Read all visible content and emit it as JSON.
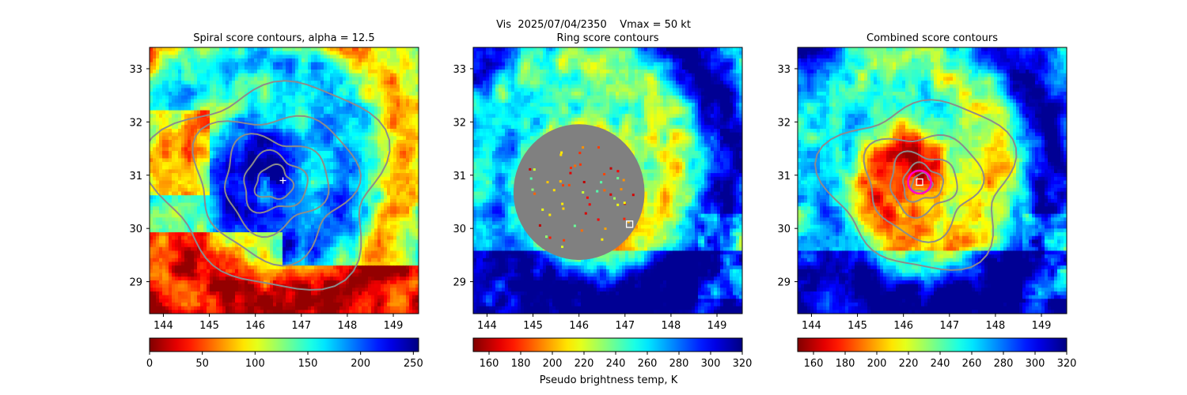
{
  "figure": {
    "suptitle": "Vis  2025/07/04/2350    Vmax = 50 kt",
    "colorbar_label": "Pseudo brightness temp, K"
  },
  "chart_data": [
    {
      "type": "heatmap",
      "title": "Spiral score contours, alpha = 12.5",
      "xlabel": "",
      "ylabel": "",
      "xlim": [
        143.7,
        149.55
      ],
      "ylim": [
        28.4,
        33.4
      ],
      "xticks": [
        144,
        145,
        146,
        147,
        148,
        149
      ],
      "yticks": [
        29,
        30,
        31,
        32,
        33
      ],
      "colormap": "jet_r",
      "colorbar": {
        "min": 0,
        "max": 255,
        "ticks": [
          0,
          50,
          100,
          150,
          200,
          250
        ]
      },
      "storm_center": {
        "lon": 146.3,
        "lat": 30.95
      },
      "contour_color": "#8c8c8c",
      "marker": {
        "shape": "plus",
        "lon": 146.6,
        "lat": 30.9,
        "color": "#ffffff"
      },
      "gray_mask": null,
      "ring": null
    },
    {
      "type": "heatmap",
      "title": "Ring score contours",
      "xlabel": "",
      "ylabel": "",
      "xlim": [
        143.7,
        149.55
      ],
      "ylim": [
        28.4,
        33.4
      ],
      "xticks": [
        144,
        145,
        146,
        147,
        148,
        149
      ],
      "yticks": [
        29,
        30,
        31,
        32,
        33
      ],
      "colormap": "jet_r",
      "colorbar": {
        "min": 150,
        "max": 320,
        "ticks": [
          160,
          180,
          200,
          220,
          240,
          260,
          280,
          300,
          320
        ]
      },
      "storm_center": {
        "lon": 146.3,
        "lat": 30.95
      },
      "contour_color": null,
      "marker": {
        "shape": "square",
        "lon": 147.1,
        "lat": 30.08,
        "color": "#ffffff"
      },
      "gray_mask": {
        "center_lon": 146.0,
        "center_lat": 30.95,
        "radius_deg": 1.5,
        "color": "#808080"
      },
      "ring": null
    },
    {
      "type": "heatmap",
      "title": "Combined score contours",
      "xlabel": "",
      "ylabel": "",
      "xlim": [
        143.7,
        149.55
      ],
      "ylim": [
        28.4,
        33.4
      ],
      "xticks": [
        144,
        145,
        146,
        147,
        148,
        149
      ],
      "yticks": [
        29,
        30,
        31,
        32,
        33
      ],
      "colormap": "jet_r",
      "colorbar": {
        "min": 150,
        "max": 320,
        "ticks": [
          160,
          180,
          200,
          220,
          240,
          260,
          280,
          300,
          320
        ]
      },
      "storm_center": {
        "lon": 146.3,
        "lat": 30.95
      },
      "contour_color": "#8c8c8c",
      "marker": {
        "shape": "square",
        "lon": 146.35,
        "lat": 30.87,
        "color": "#ffffff"
      },
      "gray_mask": null,
      "ring": {
        "lon": 146.35,
        "lat": 30.87,
        "radius_deg": 0.25,
        "color": "#ff00cc"
      }
    }
  ]
}
